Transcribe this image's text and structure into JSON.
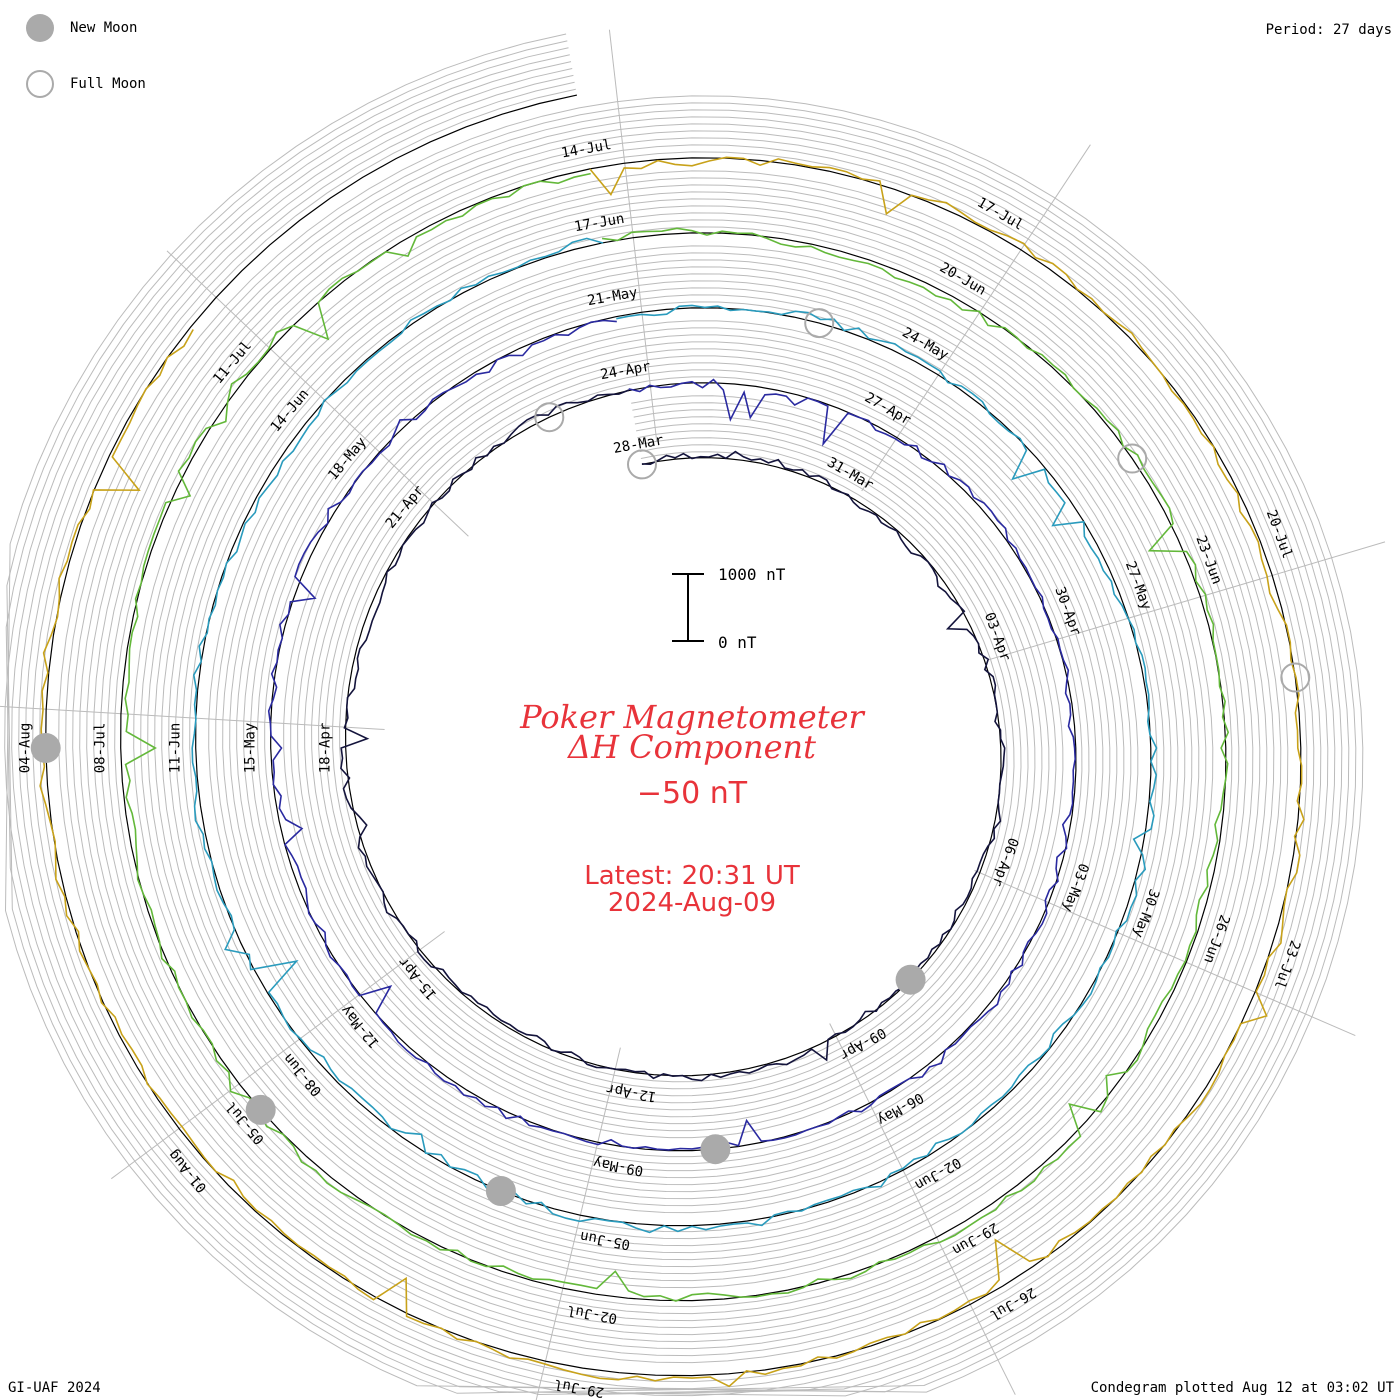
{
  "legend": {
    "new_moon_label": "New Moon",
    "full_moon_label": "Full Moon"
  },
  "period_text": "Period: 27 days",
  "footer_left": "GI-UAF 2024",
  "footer_right": "Condegram plotted Aug 12 at 03:02 UT",
  "colors": {
    "title": "#e8333a",
    "new_moon": "#aaaaaa",
    "grid": "#bbbbbb",
    "baseline": "#000000"
  },
  "chart_data": {
    "type": "line",
    "title_line1": "Poker Magnetometer",
    "title_line2": "ΔH Component",
    "baseline_label": "−50 nT",
    "latest_line1": "Latest: 20:31 UT",
    "latest_line2": "2024-Aug-09",
    "scale_bar": {
      "top_label": "1000 nT",
      "bottom_label": "0 nT"
    },
    "period_days": 27,
    "series": [
      {
        "color": "#14143c",
        "dates": [
          "28-Mar",
          "31-Mar",
          "03-Apr",
          "06-Apr",
          "09-Apr",
          "12-Apr",
          "15-Apr",
          "18-Apr",
          "21-Apr"
        ]
      },
      {
        "color": "#2a2aa0",
        "dates": [
          "24-Apr",
          "27-Apr",
          "30-Apr",
          "03-May",
          "06-May",
          "09-May",
          "12-May",
          "15-May",
          "18-May"
        ]
      },
      {
        "color": "#2a9bbd",
        "dates": [
          "21-May",
          "24-May",
          "27-May",
          "30-May",
          "02-Jun",
          "05-Jun",
          "08-Jun",
          "11-Jun",
          "14-Jun"
        ]
      },
      {
        "color": "#63b83a",
        "dates": [
          "17-Jun",
          "20-Jun",
          "23-Jun",
          "26-Jun",
          "29-Jun",
          "02-Jul",
          "05-Jul",
          "08-Jul",
          "11-Jul"
        ]
      },
      {
        "color": "#c8a21a",
        "dates": [
          "14-Jul",
          "17-Jul",
          "20-Jul",
          "23-Jul",
          "26-Jul",
          "29-Jul",
          "01-Aug",
          "04-Aug"
        ]
      }
    ],
    "new_moon_dates": [
      "08-Apr",
      "08-May",
      "06-Jun",
      "05-Jul",
      "04-Aug"
    ],
    "full_moon_dates": [
      "25-Mar",
      "23-Apr",
      "23-May",
      "22-Jun",
      "21-Jul"
    ]
  }
}
